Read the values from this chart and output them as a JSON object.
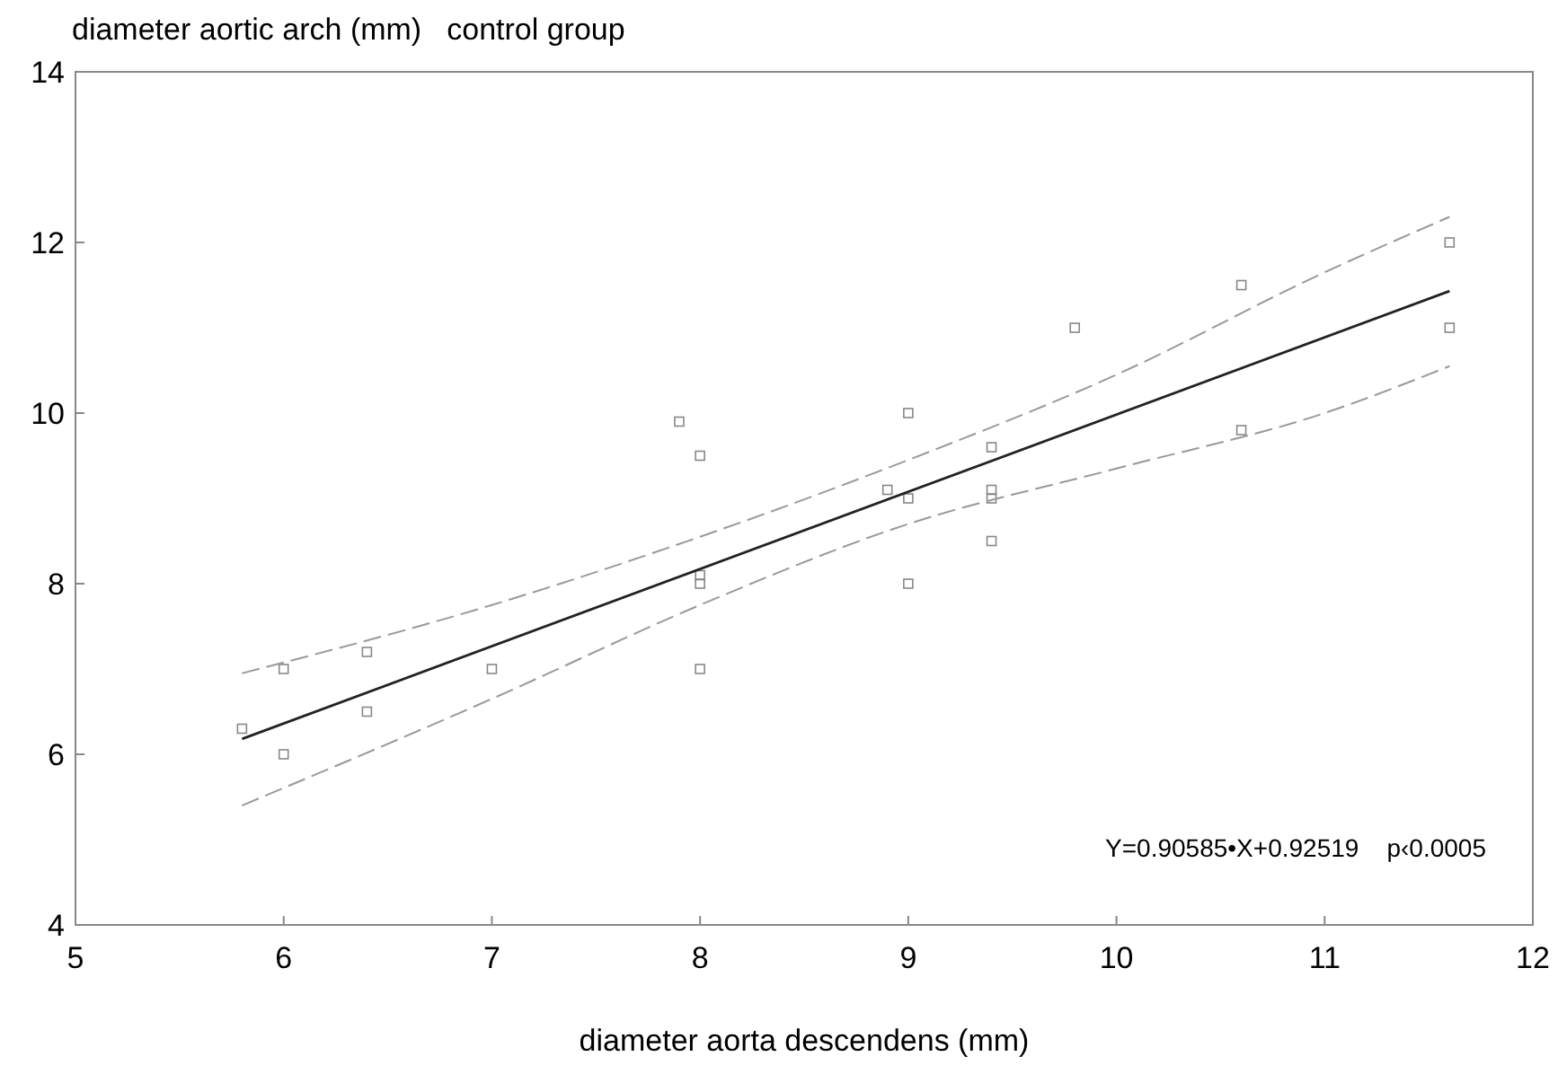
{
  "chart_data": {
    "type": "scatter",
    "title": "control group",
    "xlabel": "diameter aorta descendens (mm)",
    "ylabel": "diameter aortic arch (mm)",
    "xlim": [
      5,
      12
    ],
    "xticks": [
      5,
      6,
      7,
      8,
      9,
      10,
      11,
      12
    ],
    "ylim": [
      4,
      14
    ],
    "yticks": [
      4,
      6,
      8,
      10,
      12,
      14
    ],
    "grid": false,
    "annotations": [
      {
        "text": "Y=0.90585•X+0.92519    p‹0.0005"
      }
    ],
    "series": [
      {
        "color": "#888888",
        "marker": "square",
        "x": [
          5.8,
          6.0,
          6.0,
          6.4,
          6.4,
          7.0,
          7.9,
          8.0,
          8.0,
          8.0,
          8.0,
          8.9,
          9.0,
          9.0,
          9.0,
          9.4,
          9.4,
          9.4,
          9.4,
          9.8,
          10.6,
          10.6,
          11.6,
          11.6
        ],
        "values": [
          6.3,
          7.0,
          6.0,
          7.2,
          6.5,
          7.0,
          9.9,
          9.5,
          8.1,
          8.0,
          7.0,
          9.1,
          10.0,
          9.0,
          8.0,
          9.6,
          9.1,
          9.0,
          8.5,
          11.0,
          11.5,
          9.8,
          12.0,
          11.0
        ]
      },
      {
        "type": "line",
        "color": "#222222",
        "line_style": "solid",
        "x": [
          5.8,
          11.6
        ],
        "values": [
          6.18,
          11.43
        ]
      },
      {
        "type": "line",
        "color": "#999999",
        "line_style": "dashed",
        "x": [
          5.8,
          7,
          8,
          9,
          10,
          11,
          11.6
        ],
        "values": [
          6.95,
          7.75,
          8.55,
          9.45,
          10.45,
          11.65,
          12.3
        ]
      },
      {
        "type": "line",
        "color": "#999999",
        "line_style": "dashed",
        "x": [
          5.8,
          7,
          8,
          9,
          10,
          11,
          11.6
        ],
        "values": [
          5.4,
          6.65,
          7.75,
          8.7,
          9.35,
          10.0,
          10.55
        ]
      }
    ]
  }
}
